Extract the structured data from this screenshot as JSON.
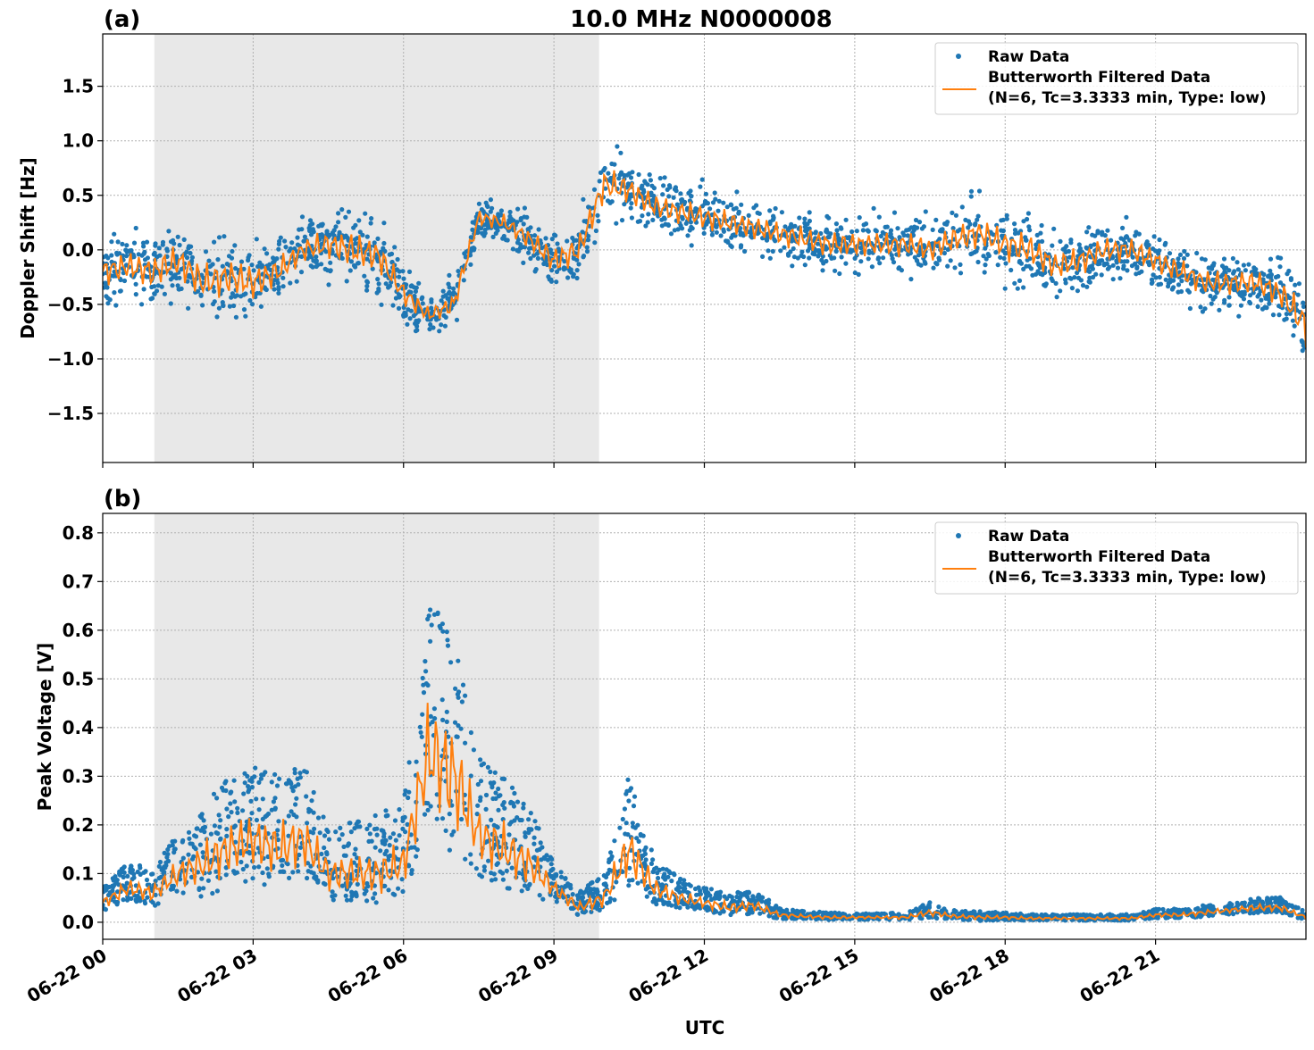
{
  "chart_data": [
    {
      "type": "scatter",
      "panel_label": "(a)",
      "title": "10.0 MHz N0000008",
      "xlabel": "",
      "ylabel": "Doppler Shift [Hz]",
      "xlim_hours": [
        0,
        24
      ],
      "ylim": [
        -1.95,
        1.98
      ],
      "yticks": [
        -1.5,
        -1.0,
        -0.5,
        0.0,
        0.5,
        1.0,
        1.5
      ],
      "ytick_labels": [
        "−1.5",
        "−1.0",
        "−0.5",
        "0.0",
        "0.5",
        "1.0",
        "1.5"
      ],
      "xtick_labels": [
        "06-22 00",
        "06-22 03",
        "06-22 06",
        "06-22 09",
        "06-22 12",
        "06-22 15",
        "06-22 18",
        "06-22 21"
      ],
      "xtick_hours": [
        0,
        3,
        6,
        9,
        12,
        15,
        18,
        21
      ],
      "grid": true,
      "shaded_region_hours": [
        1.03,
        9.9
      ],
      "shade_color": "#e8e8e8",
      "legend_position": "top-right",
      "legend": [
        "Raw Data",
        "Butterworth Filtered Data",
        "(N=6, Tc=3.3333 min, Type: low)"
      ],
      "raw_color": "#1f77b4",
      "filtered_color": "#ff7f0e",
      "time_hours": [
        0,
        0.5,
        1,
        1.5,
        2,
        2.5,
        3,
        3.5,
        4,
        4.5,
        5,
        5.5,
        6,
        6.5,
        7,
        7.5,
        8,
        8.5,
        9,
        9.5,
        10,
        10.5,
        11,
        11.5,
        12,
        12.5,
        13,
        13.5,
        14,
        14.5,
        15,
        15.5,
        16,
        16.5,
        17,
        17.5,
        18,
        18.5,
        19,
        19.5,
        20,
        20.5,
        21,
        21.5,
        22,
        22.5,
        23,
        23.5,
        24
      ],
      "filtered": [
        -0.2,
        -0.15,
        -0.2,
        -0.1,
        -0.3,
        -0.25,
        -0.3,
        -0.2,
        0.0,
        0.05,
        0.0,
        -0.05,
        -0.4,
        -0.6,
        -0.5,
        0.3,
        0.25,
        0.1,
        -0.1,
        0.0,
        0.6,
        0.55,
        0.4,
        0.35,
        0.3,
        0.25,
        0.2,
        0.15,
        0.1,
        0.05,
        0.05,
        0.05,
        0.05,
        0.0,
        0.1,
        0.15,
        0.05,
        0.0,
        -0.15,
        -0.1,
        0.0,
        0.0,
        -0.1,
        -0.2,
        -0.3,
        -0.3,
        -0.3,
        -0.4,
        -0.7
      ],
      "raw_spread": [
        0.35,
        0.35,
        0.4,
        0.4,
        0.45,
        0.45,
        0.45,
        0.35,
        0.3,
        0.35,
        0.45,
        0.4,
        0.3,
        0.2,
        0.25,
        0.2,
        0.2,
        0.25,
        0.35,
        0.35,
        0.4,
        0.35,
        0.3,
        0.3,
        0.3,
        0.3,
        0.3,
        0.3,
        0.3,
        0.3,
        0.3,
        0.3,
        0.3,
        0.3,
        0.35,
        0.35,
        0.4,
        0.4,
        0.35,
        0.35,
        0.3,
        0.3,
        0.3,
        0.3,
        0.3,
        0.3,
        0.3,
        0.35,
        0.5
      ]
    },
    {
      "type": "scatter",
      "panel_label": "(b)",
      "title": "",
      "xlabel": "UTC",
      "ylabel": "Peak Voltage [V]",
      "xlim_hours": [
        0,
        24
      ],
      "ylim": [
        -0.035,
        0.84
      ],
      "yticks": [
        0.0,
        0.1,
        0.2,
        0.3,
        0.4,
        0.5,
        0.6,
        0.7,
        0.8
      ],
      "ytick_labels": [
        "0.0",
        "0.1",
        "0.2",
        "0.3",
        "0.4",
        "0.5",
        "0.6",
        "0.7",
        "0.8"
      ],
      "xtick_labels": [
        "06-22 00",
        "06-22 03",
        "06-22 06",
        "06-22 09",
        "06-22 12",
        "06-22 15",
        "06-22 18",
        "06-22 21"
      ],
      "xtick_hours": [
        0,
        3,
        6,
        9,
        12,
        15,
        18,
        21
      ],
      "grid": true,
      "shaded_region_hours": [
        1.03,
        9.9
      ],
      "shade_color": "#e8e8e8",
      "legend_position": "top-right",
      "legend": [
        "Raw Data",
        "Butterworth Filtered Data",
        "(N=6, Tc=3.3333 min, Type: low)"
      ],
      "raw_color": "#1f77b4",
      "filtered_color": "#ff7f0e",
      "time_hours": [
        0,
        0.5,
        1,
        1.5,
        2,
        2.5,
        3,
        3.5,
        4,
        4.5,
        5,
        5.5,
        6,
        6.5,
        7,
        7.5,
        8,
        8.5,
        9,
        9.5,
        10,
        10.5,
        11,
        11.5,
        12,
        12.5,
        13,
        13.5,
        14,
        14.5,
        15,
        15.5,
        16,
        16.5,
        17,
        17.5,
        18,
        18.5,
        19,
        19.5,
        20,
        20.5,
        21,
        21.5,
        22,
        22.5,
        23,
        23.5,
        24
      ],
      "filtered": [
        0.04,
        0.07,
        0.06,
        0.1,
        0.12,
        0.15,
        0.17,
        0.15,
        0.17,
        0.1,
        0.1,
        0.1,
        0.12,
        0.35,
        0.3,
        0.18,
        0.15,
        0.12,
        0.07,
        0.03,
        0.05,
        0.15,
        0.07,
        0.05,
        0.04,
        0.03,
        0.035,
        0.015,
        0.012,
        0.01,
        0.01,
        0.01,
        0.01,
        0.02,
        0.012,
        0.01,
        0.01,
        0.008,
        0.008,
        0.008,
        0.008,
        0.008,
        0.015,
        0.015,
        0.02,
        0.025,
        0.03,
        0.03,
        0.01
      ],
      "raw_spread": [
        0.03,
        0.05,
        0.05,
        0.08,
        0.12,
        0.15,
        0.15,
        0.15,
        0.15,
        0.1,
        0.1,
        0.12,
        0.12,
        0.3,
        0.3,
        0.15,
        0.15,
        0.12,
        0.05,
        0.03,
        0.05,
        0.15,
        0.06,
        0.04,
        0.03,
        0.03,
        0.03,
        0.015,
        0.01,
        0.01,
        0.008,
        0.008,
        0.01,
        0.02,
        0.012,
        0.012,
        0.01,
        0.008,
        0.008,
        0.008,
        0.008,
        0.008,
        0.012,
        0.012,
        0.015,
        0.015,
        0.02,
        0.02,
        0.01
      ]
    }
  ]
}
